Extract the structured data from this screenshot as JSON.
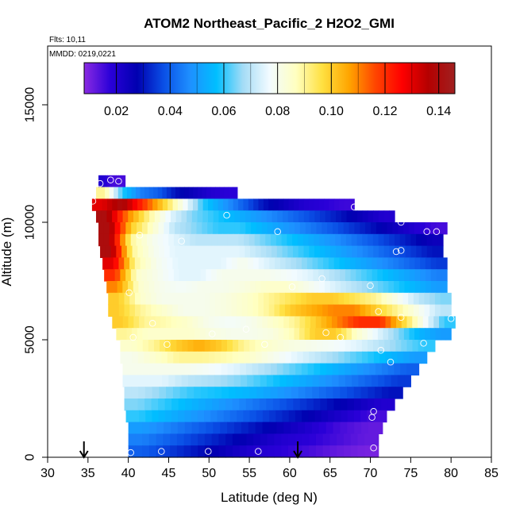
{
  "chart_data": {
    "type": "heatmap",
    "title": "ATOM2 Northeast_Pacific_2 H2O2_GMI",
    "flights_label": "Flts: 10,11",
    "dates_label": "MMDD: 0219,0221",
    "xlabel": "Latitude (deg N)",
    "ylabel": "Altitude (m)",
    "xlim": [
      30,
      85
    ],
    "ylim": [
      0,
      17500
    ],
    "x_ticks": [
      30,
      35,
      40,
      45,
      50,
      55,
      60,
      65,
      70,
      75,
      80,
      85
    ],
    "x_tick_labels": [
      "30",
      "35",
      "40",
      "45",
      "50",
      "55",
      "60",
      "65",
      "70",
      "75",
      "80",
      "85"
    ],
    "y_ticks": [
      0,
      5000,
      10000,
      15000
    ],
    "y_tick_labels": [
      "0",
      "5000",
      "10000",
      "15000"
    ],
    "colorbar": {
      "range": [
        0.008,
        0.146
      ],
      "ticks": [
        0.02,
        0.04,
        0.06,
        0.08,
        0.1,
        0.12,
        0.14
      ],
      "tick_labels": [
        "0.02",
        "0.04",
        "0.06",
        "0.08",
        "0.10",
        "0.12",
        "0.14"
      ],
      "colors": [
        "#8a2be2",
        "#2a00d8",
        "#0000b0",
        "#0a4fe6",
        "#1e90ff",
        "#00bfff",
        "#a4dcf6",
        "#f2fbff",
        "#ffffc0",
        "#ffe040",
        "#ffa500",
        "#ff4500",
        "#ff0000",
        "#b40000",
        "#a02020"
      ]
    },
    "arrows_x": [
      34.5,
      61
    ],
    "rows": [
      {
        "alt": 11750,
        "x0": 36.3,
        "x1": 39.6,
        "vals": [
          0.02,
          0.015,
          0.015
        ]
      },
      {
        "alt": 11250,
        "x0": 36.0,
        "x1": 53.5,
        "vals": [
          0.09,
          0.06,
          0.045,
          0.04,
          0.03,
          0.025,
          0.02,
          0.018
        ]
      },
      {
        "alt": 10750,
        "x0": 35.5,
        "x1": 68.0,
        "vals": [
          0.13,
          0.14,
          0.12,
          0.1,
          0.08,
          0.06,
          0.05,
          0.04,
          0.03,
          0.025,
          0.02,
          0.018,
          0.016
        ]
      },
      {
        "alt": 10250,
        "x0": 36.0,
        "x1": 73.0,
        "vals": [
          0.14,
          0.11,
          0.09,
          0.075,
          0.065,
          0.06,
          0.055,
          0.05,
          0.045,
          0.04,
          0.035,
          0.03,
          0.025,
          0.02
        ]
      },
      {
        "alt": 9750,
        "x0": 36.3,
        "x1": 79.5,
        "vals": [
          0.14,
          0.1,
          0.085,
          0.07,
          0.065,
          0.06,
          0.06,
          0.055,
          0.05,
          0.045,
          0.04,
          0.035,
          0.03,
          0.025,
          0.02,
          0.015
        ]
      },
      {
        "alt": 9250,
        "x0": 36.3,
        "x1": 79.0,
        "vals": [
          0.14,
          0.09,
          0.08,
          0.075,
          0.07,
          0.07,
          0.07,
          0.065,
          0.06,
          0.055,
          0.05,
          0.045,
          0.04,
          0.035,
          0.03,
          0.025
        ]
      },
      {
        "alt": 8750,
        "x0": 36.5,
        "x1": 79.0,
        "vals": [
          0.14,
          0.09,
          0.08,
          0.075,
          0.075,
          0.075,
          0.075,
          0.07,
          0.065,
          0.06,
          0.055,
          0.05,
          0.045,
          0.04,
          0.035,
          0.03
        ]
      },
      {
        "alt": 8250,
        "x0": 36.8,
        "x1": 79.5,
        "vals": [
          0.13,
          0.09,
          0.08,
          0.075,
          0.075,
          0.075,
          0.08,
          0.075,
          0.07,
          0.065,
          0.06,
          0.055,
          0.05,
          0.045,
          0.04,
          0.035
        ]
      },
      {
        "alt": 7750,
        "x0": 37.0,
        "x1": 79.5,
        "vals": [
          0.12,
          0.085,
          0.08,
          0.075,
          0.075,
          0.08,
          0.08,
          0.08,
          0.078,
          0.075,
          0.07,
          0.065,
          0.06,
          0.055,
          0.05,
          0.045
        ]
      },
      {
        "alt": 7250,
        "x0": 37.3,
        "x1": 79.5,
        "vals": [
          0.11,
          0.085,
          0.08,
          0.078,
          0.08,
          0.08,
          0.082,
          0.085,
          0.085,
          0.08,
          0.075,
          0.07,
          0.065,
          0.06,
          0.055,
          0.05
        ]
      },
      {
        "alt": 6750,
        "x0": 37.5,
        "x1": 80.0,
        "vals": [
          0.1,
          0.085,
          0.08,
          0.08,
          0.08,
          0.082,
          0.085,
          0.09,
          0.095,
          0.1,
          0.1,
          0.095,
          0.09,
          0.08,
          0.07,
          0.065
        ]
      },
      {
        "alt": 6250,
        "x0": 37.5,
        "x1": 80.0,
        "vals": [
          0.1,
          0.09,
          0.085,
          0.08,
          0.08,
          0.082,
          0.085,
          0.09,
          0.1,
          0.105,
          0.11,
          0.11,
          0.1,
          0.09,
          0.08,
          0.07
        ]
      },
      {
        "alt": 5750,
        "x0": 38.0,
        "x1": 80.5,
        "vals": [
          0.1,
          0.09,
          0.088,
          0.085,
          0.08,
          0.078,
          0.08,
          0.085,
          0.09,
          0.1,
          0.11,
          0.12,
          0.12,
          0.1,
          0.08,
          0.06
        ]
      },
      {
        "alt": 5250,
        "x0": 38.5,
        "x1": 80.0,
        "vals": [
          0.09,
          0.085,
          0.085,
          0.085,
          0.082,
          0.08,
          0.08,
          0.082,
          0.088,
          0.1,
          0.1,
          0.085,
          0.075,
          0.065,
          0.055,
          0.05
        ]
      },
      {
        "alt": 4750,
        "x0": 39.0,
        "x1": 78.0,
        "vals": [
          0.085,
          0.09,
          0.1,
          0.105,
          0.1,
          0.09,
          0.085,
          0.082,
          0.08,
          0.078,
          0.075,
          0.07,
          0.065,
          0.06
        ]
      },
      {
        "alt": 4250,
        "x0": 39.0,
        "x1": 77.0,
        "vals": [
          0.08,
          0.085,
          0.09,
          0.09,
          0.088,
          0.085,
          0.08,
          0.075,
          0.07,
          0.065,
          0.06,
          0.055,
          0.05
        ]
      },
      {
        "alt": 3750,
        "x0": 39.3,
        "x1": 76.0,
        "vals": [
          0.08,
          0.08,
          0.08,
          0.078,
          0.075,
          0.07,
          0.065,
          0.06,
          0.055,
          0.05,
          0.045,
          0.04
        ]
      },
      {
        "alt": 3250,
        "x0": 39.3,
        "x1": 75.0,
        "vals": [
          0.075,
          0.075,
          0.07,
          0.068,
          0.065,
          0.06,
          0.055,
          0.05,
          0.045,
          0.04,
          0.035
        ]
      },
      {
        "alt": 2750,
        "x0": 39.5,
        "x1": 74.0,
        "vals": [
          0.07,
          0.065,
          0.06,
          0.058,
          0.055,
          0.05,
          0.045,
          0.04,
          0.035,
          0.03
        ]
      },
      {
        "alt": 2250,
        "x0": 39.5,
        "x1": 73.0,
        "vals": [
          0.065,
          0.06,
          0.055,
          0.05,
          0.045,
          0.04,
          0.035,
          0.03,
          0.025,
          0.02
        ]
      },
      {
        "alt": 1750,
        "x0": 39.7,
        "x1": 72.0,
        "vals": [
          0.06,
          0.055,
          0.05,
          0.045,
          0.04,
          0.035,
          0.03,
          0.025,
          0.02,
          0.015
        ]
      },
      {
        "alt": 1250,
        "x0": 40.0,
        "x1": 71.5,
        "vals": [
          0.05,
          0.045,
          0.04,
          0.035,
          0.03,
          0.025,
          0.02,
          0.015,
          0.012
        ]
      },
      {
        "alt": 750,
        "x0": 40.0,
        "x1": 71.0,
        "vals": [
          0.045,
          0.04,
          0.035,
          0.03,
          0.025,
          0.02,
          0.018,
          0.015,
          0.012
        ]
      },
      {
        "alt": 250,
        "x0": 40.0,
        "x1": 71.0,
        "vals": [
          0.04,
          0.035,
          0.03,
          0.025,
          0.02,
          0.018,
          0.015,
          0.012,
          0.01
        ]
      }
    ],
    "points": [
      [
        36.5,
        11650
      ],
      [
        37.8,
        11800
      ],
      [
        38.8,
        11750
      ],
      [
        35.6,
        10900
      ],
      [
        68,
        10650
      ],
      [
        52.2,
        10300
      ],
      [
        73.8,
        10000
      ],
      [
        41.4,
        9450
      ],
      [
        58.5,
        9600
      ],
      [
        77,
        9600
      ],
      [
        78.2,
        9600
      ],
      [
        46.6,
        9200
      ],
      [
        73.2,
        8750
      ],
      [
        73.8,
        8800
      ],
      [
        64,
        7600
      ],
      [
        60.3,
        7250
      ],
      [
        70,
        7300
      ],
      [
        40.1,
        7000
      ],
      [
        71,
        6200
      ],
      [
        73.8,
        5950
      ],
      [
        80,
        5900
      ],
      [
        43,
        5700
      ],
      [
        54.6,
        5450
      ],
      [
        40.6,
        5100
      ],
      [
        50.4,
        5250
      ],
      [
        64.5,
        5300
      ],
      [
        66.3,
        5100
      ],
      [
        44.8,
        4800
      ],
      [
        56.9,
        4800
      ],
      [
        76.6,
        4850
      ],
      [
        71.3,
        4550
      ],
      [
        72.5,
        4050
      ],
      [
        70.4,
        1950
      ],
      [
        70.2,
        1700
      ],
      [
        71.5,
        550
      ],
      [
        72.2,
        600
      ],
      [
        70.4,
        400
      ],
      [
        40.3,
        200
      ],
      [
        44.1,
        250
      ],
      [
        49.9,
        250
      ],
      [
        56.1,
        250
      ]
    ]
  }
}
